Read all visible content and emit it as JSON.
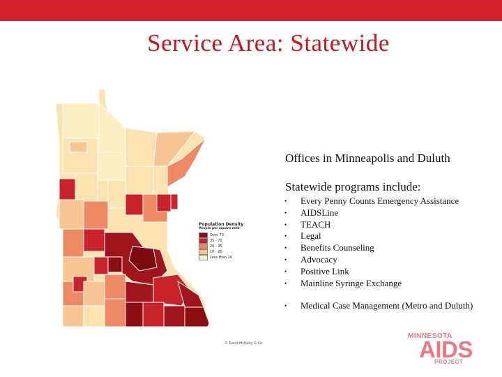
{
  "slide": {
    "title": "Service Area:  Statewide",
    "offices_text": "Offices in Minneapolis and Duluth",
    "programs_title": "Statewide programs include:",
    "bullet": "•",
    "programs": [
      "Every Penny Counts Emergency Assistance",
      "AIDSLine",
      "TEACH",
      "Legal",
      "Benefits Counseling",
      "Advocacy",
      "Positive Link",
      "Mainline Syringe Exchange"
    ],
    "extra_program": "Medical Case Management (Metro and Duluth)"
  },
  "map": {
    "legend_title": "Population Density",
    "legend_subtitle": "People per square mile",
    "legend_items": [
      {
        "label": "Over 70",
        "color": "#8b0e13"
      },
      {
        "label": "35 - 70",
        "color": "#c8232a"
      },
      {
        "label": "20 - 35",
        "color": "#ed8a63"
      },
      {
        "label": "10 - 20",
        "color": "#f6c592"
      },
      {
        "label": "Less than 10",
        "color": "#fdf1c4"
      }
    ],
    "copyright": "© Rand McNally & Co."
  },
  "logo": {
    "line1": "MINNESOTA",
    "line2": "AIDS",
    "line3": "PROJECT"
  }
}
